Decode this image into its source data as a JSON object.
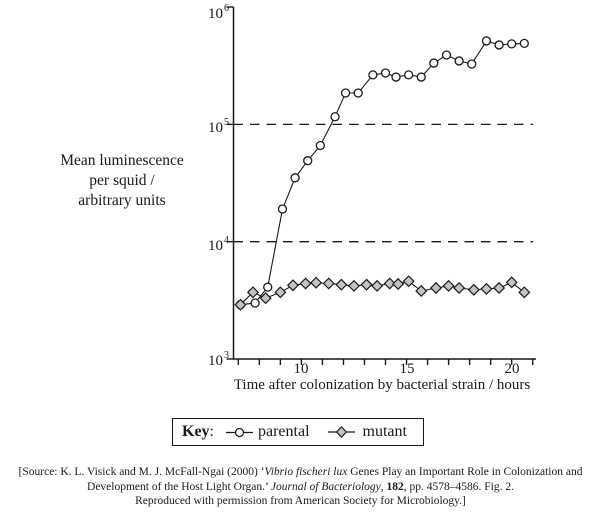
{
  "figure": {
    "y_axis_title_lines": [
      "Mean luminescence",
      "per squid /",
      "arbitrary units"
    ],
    "x_axis_title": "Time after colonization by bacterial strain / hours",
    "y_ticks": [
      {
        "base": "10",
        "exp": "6"
      },
      {
        "base": "10",
        "exp": "5"
      },
      {
        "base": "10",
        "exp": "4"
      },
      {
        "base": "10",
        "exp": "3"
      }
    ],
    "x_tick_labels": [
      "10",
      "15",
      "20"
    ]
  },
  "legend": {
    "title": "Key",
    "colon": ":",
    "items": [
      {
        "label": "parental",
        "marker": "open-circle"
      },
      {
        "label": "mutant",
        "marker": "gray-diamond"
      }
    ]
  },
  "source": {
    "line1": [
      {
        "t": "[Source: K. L. Visick and M. J. McFall-Ngai (2000) ‘"
      },
      {
        "t": "Vibrio fischeri lux"
      },
      {
        "t": " Genes Play an Important Role in Colonization and"
      }
    ],
    "line2": [
      {
        "t": "Development of the Host Light Organ.’ "
      },
      {
        "t": "Journal of Bacteriology"
      },
      {
        "t": ", "
      },
      {
        "t": "182"
      },
      {
        "t": ", pp. 4578–4586. Fig. 2."
      }
    ],
    "line3": [
      {
        "t": "Reproduced with permission from American Society for Microbiology.]"
      }
    ]
  },
  "colors": {
    "line": "#1a1a1a",
    "circle_fill": "#ffffff",
    "diamond_fill": "#c3c3c3"
  },
  "chart_data": {
    "type": "line",
    "title": "",
    "xlabel": "Time after colonization by bacterial strain / hours",
    "ylabel": "Mean luminescence per squid / arbitrary units",
    "x_axis": {
      "min": 7,
      "max": 21,
      "tick_interval": 1,
      "labeled_ticks": [
        10,
        15,
        20
      ]
    },
    "y_axis": {
      "scale": "log",
      "min": 1000,
      "max": 1000000,
      "ticks": [
        1000000,
        100000,
        10000,
        1000
      ],
      "dashed_gridlines": [
        100000,
        10000
      ]
    },
    "legend_position": "below",
    "series": [
      {
        "name": "parental",
        "marker": "circle",
        "marker_fill": "#ffffff",
        "points": [
          [
            7.1,
            2900
          ],
          [
            7.8,
            3000
          ],
          [
            8.4,
            4100
          ],
          [
            9.1,
            19000
          ],
          [
            9.7,
            35000
          ],
          [
            10.3,
            49000
          ],
          [
            10.9,
            66000
          ],
          [
            11.6,
            116000
          ],
          [
            12.1,
            185000
          ],
          [
            12.7,
            185000
          ],
          [
            13.4,
            264000
          ],
          [
            14.0,
            274000
          ],
          [
            14.5,
            253000
          ],
          [
            15.1,
            264000
          ],
          [
            15.7,
            253000
          ],
          [
            16.3,
            333000
          ],
          [
            16.9,
            390000
          ],
          [
            17.5,
            347000
          ],
          [
            18.1,
            327000
          ],
          [
            18.8,
            514000
          ],
          [
            19.4,
            475000
          ],
          [
            20.0,
            485000
          ],
          [
            20.6,
            490000
          ]
        ]
      },
      {
        "name": "mutant",
        "marker": "diamond",
        "marker_fill": "#c3c3c3",
        "points": [
          [
            7.1,
            2900
          ],
          [
            7.7,
            3700
          ],
          [
            8.3,
            3300
          ],
          [
            9.0,
            3700
          ],
          [
            9.6,
            4250
          ],
          [
            10.2,
            4400
          ],
          [
            10.7,
            4470
          ],
          [
            11.3,
            4400
          ],
          [
            11.9,
            4300
          ],
          [
            12.5,
            4200
          ],
          [
            13.1,
            4300
          ],
          [
            13.6,
            4200
          ],
          [
            14.2,
            4400
          ],
          [
            14.6,
            4360
          ],
          [
            15.1,
            4600
          ],
          [
            15.7,
            3800
          ],
          [
            16.4,
            4030
          ],
          [
            17.0,
            4200
          ],
          [
            17.5,
            4030
          ],
          [
            18.2,
            3890
          ],
          [
            18.8,
            3960
          ],
          [
            19.4,
            4030
          ],
          [
            20.0,
            4500
          ],
          [
            20.6,
            3700
          ]
        ]
      }
    ]
  }
}
